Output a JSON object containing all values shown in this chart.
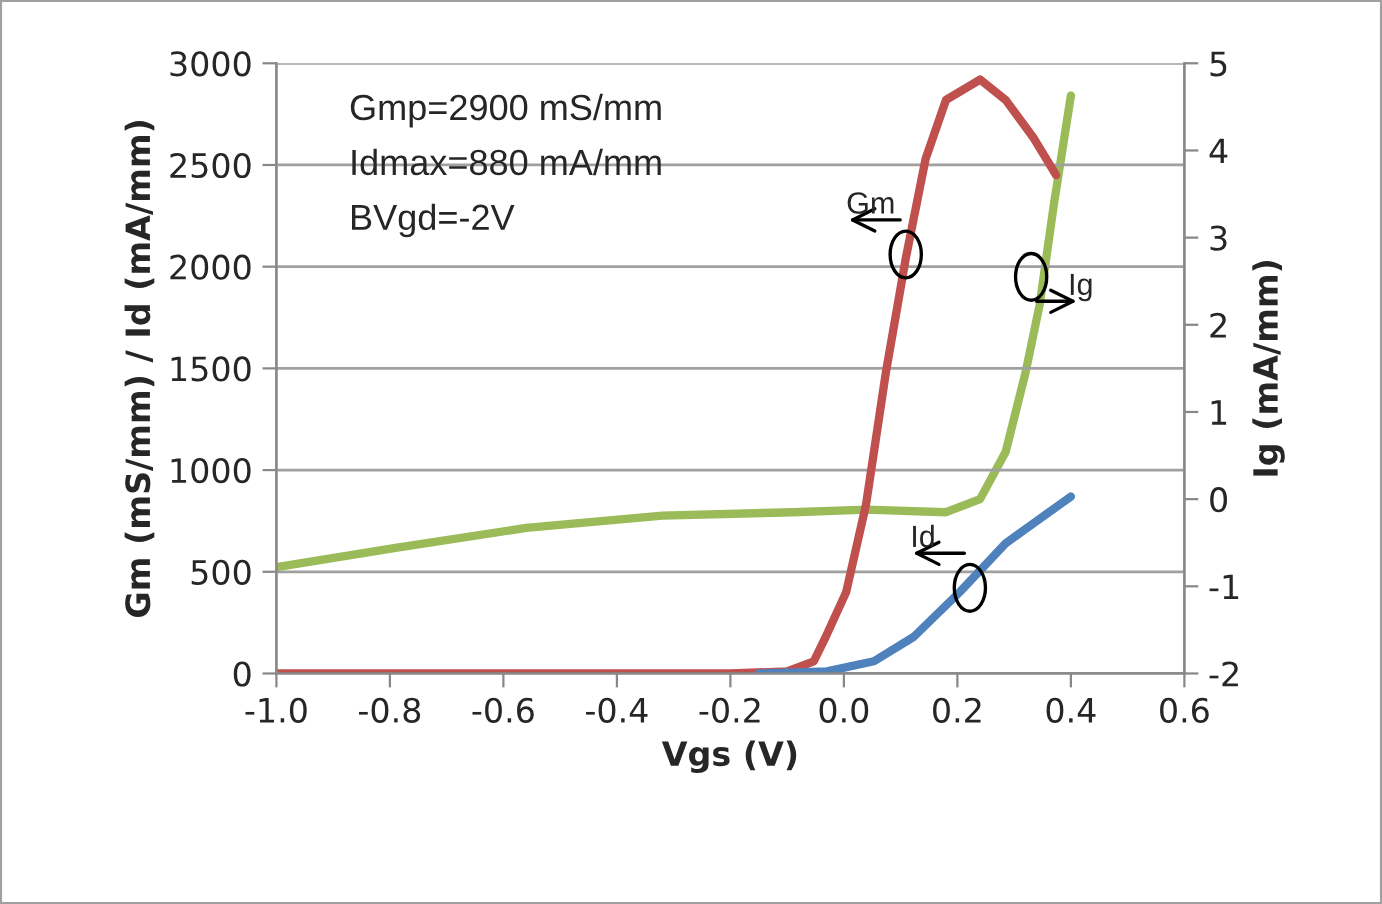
{
  "chart_data": {
    "type": "line",
    "xlabel": "Vgs (V)",
    "ylabel": "Gm (mS/mm) / Id (mA/mm)",
    "y2label": "Ig (mA/mm)",
    "xlim": [
      -1.0,
      0.6
    ],
    "xticks": [
      {
        "value": -1.0,
        "label": "-1.0"
      },
      {
        "value": -0.8,
        "label": "-0.8"
      },
      {
        "value": -0.6,
        "label": "-0.6"
      },
      {
        "value": -0.4,
        "label": "-0.4"
      },
      {
        "value": -0.2,
        "label": "-0.2"
      },
      {
        "value": 0.0,
        "label": "0.0"
      },
      {
        "value": 0.2,
        "label": "0.2"
      },
      {
        "value": 0.4,
        "label": "0.4"
      },
      {
        "value": 0.6,
        "label": "0.6"
      }
    ],
    "ylim": [
      0,
      3000
    ],
    "yticks": [
      0,
      500,
      1000,
      1500,
      2000,
      2500,
      3000
    ],
    "y2lim": [
      -2,
      5
    ],
    "y2ticks": [
      -2,
      -1,
      0,
      1,
      2,
      3,
      4,
      5
    ],
    "grid": "y",
    "marker": "none",
    "line_style": "solid",
    "series": [
      {
        "color": "#c0504d",
        "x": [
          -1.0,
          -0.6,
          -0.2,
          -0.1,
          -0.053,
          -0.032,
          0.004,
          0.039,
          0.074,
          0.109,
          0.144,
          0.18,
          0.24,
          0.285,
          0.335,
          0.374
        ],
        "values": [
          0,
          0,
          0,
          10,
          60,
          180,
          400,
          830,
          1480,
          2040,
          2530,
          2820,
          2920,
          2820,
          2630,
          2450
        ]
      },
      {
        "color": "#4f81bd",
        "x": [
          -0.15,
          -0.03,
          0.053,
          0.123,
          0.204,
          0.285,
          0.4
        ],
        "values": [
          0,
          10,
          60,
          180,
          400,
          640,
          870
        ]
      },
      {
        "color": "#9bbb59",
        "axis": "y2",
        "x": [
          -1.0,
          -0.79,
          -0.56,
          -0.32,
          -0.09,
          0.04,
          0.18,
          0.24,
          0.285,
          0.32,
          0.345,
          0.37,
          0.4
        ],
        "values": [
          -0.78,
          -0.56,
          -0.33,
          -0.19,
          -0.15,
          -0.12,
          -0.15,
          0.0,
          0.54,
          1.45,
          2.23,
          3.38,
          4.63
        ]
      }
    ],
    "annotations": [
      "Gmp=2900 mS/mm",
      "Idmax=880 mA/mm",
      "BVgd=-2V",
      {
        "text": "Gm",
        "x": 0.109,
        "y": 2060
      },
      {
        "text": "Ig",
        "x": 0.33,
        "y": 1950
      },
      {
        "text": "Id",
        "x": 0.222,
        "y": 421
      }
    ]
  }
}
